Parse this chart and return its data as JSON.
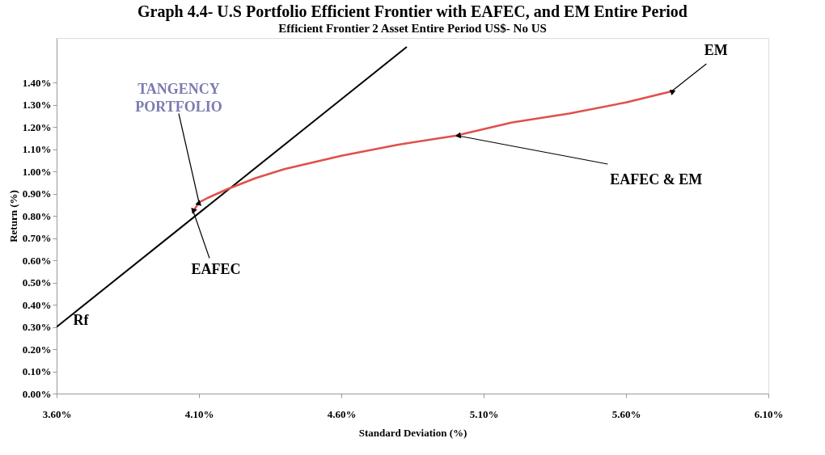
{
  "chart_data": {
    "type": "line",
    "title": "Graph 4.4- U.S Portfolio Efficient Frontier with EAFEC, and EM Entire Period",
    "subtitle": "Efficient Frontier 2 Asset Entire Period US$- No US",
    "xlabel": "Standard Deviation (%)",
    "ylabel": "Return (%)",
    "series": [
      {
        "color": "#000000",
        "x": [
          3.6,
          4.83
        ],
        "values": [
          0.3,
          1.56
        ]
      },
      {
        "color": "#e0504a",
        "x": [
          4.08,
          4.1,
          4.13,
          4.2,
          4.3,
          4.4,
          4.6,
          4.8,
          5.0,
          5.2,
          5.4,
          5.6,
          5.76
        ],
        "values": [
          0.82,
          0.86,
          0.88,
          0.92,
          0.97,
          1.01,
          1.07,
          1.12,
          1.16,
          1.22,
          1.26,
          1.31,
          1.36
        ]
      }
    ],
    "xlim": [
      3.6,
      6.1
    ],
    "ylim": [
      0,
      1.6
    ],
    "xticks": [
      {
        "value": 3.6,
        "label": "3.60%"
      },
      {
        "value": 4.1,
        "label": "4.10%"
      },
      {
        "value": 4.6,
        "label": "4.60%"
      },
      {
        "value": 5.1,
        "label": "5.10%"
      },
      {
        "value": 5.6,
        "label": "5.60%"
      },
      {
        "value": 6.1,
        "label": "6.10%"
      }
    ],
    "yticks": [
      {
        "value": 0,
        "label": "0.00%"
      },
      {
        "value": 0.1,
        "label": "0.10%"
      },
      {
        "value": 0.2,
        "label": "0.20%"
      },
      {
        "value": 0.3,
        "label": "0.30%"
      },
      {
        "value": 0.4,
        "label": "0.40%"
      },
      {
        "value": 0.5,
        "label": "0.50%"
      },
      {
        "value": 0.6,
        "label": "0.60%"
      },
      {
        "value": 0.7,
        "label": "0.70%"
      },
      {
        "value": 0.8,
        "label": "0.80%"
      },
      {
        "value": 0.9,
        "label": "0.90%"
      },
      {
        "value": 1.0,
        "label": "1.00%"
      },
      {
        "value": 1.1,
        "label": "1.10%"
      },
      {
        "value": 1.2,
        "label": "1.20%"
      },
      {
        "value": 1.3,
        "label": "1.30%"
      },
      {
        "value": 1.4,
        "label": "1.40%"
      }
    ],
    "annotations": [
      {
        "text": "TANGENCY\nPORTFOLIO",
        "x": 4.1,
        "y": 0.86
      },
      {
        "text": "EAFEC",
        "x": 4.08,
        "y": 0.82
      },
      {
        "text": "EAFEC & EM",
        "x": 5.01,
        "y": 1.16
      },
      {
        "text": "EM",
        "x": 5.76,
        "y": 1.36
      },
      {
        "text": "Rf",
        "x": 3.6,
        "y": 0.3
      }
    ],
    "grid": false,
    "marker": "none",
    "line_style": "solid"
  }
}
